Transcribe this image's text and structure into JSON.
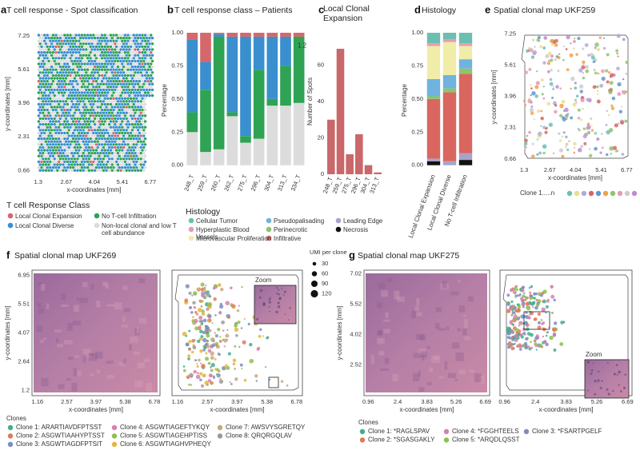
{
  "chart_data": [
    {
      "type": "map",
      "label": "a",
      "title": "T cell response - Spot classification",
      "x_label": "x-coordinates [mm]",
      "y_label": "y-coordinates [mm]",
      "xlim": [
        1.0,
        7.05
      ],
      "ylim": [
        0.4,
        7.45
      ],
      "xticks": [
        1.3,
        2.67,
        4.04,
        5.41,
        6.77
      ],
      "yticks": [
        0.66,
        2.31,
        3.96,
        5.61,
        7.25
      ]
    },
    {
      "type": "stacked_bar",
      "label": "b",
      "title": "T cell response class – Patients",
      "y_label": "Percentage",
      "legend_title": "T cell Response Class",
      "annotation": "1.2",
      "categories": [
        "248_T",
        "259_T",
        "260_T",
        "262_T",
        "275_T",
        "296_T",
        "304_T",
        "313_T",
        "334_T"
      ],
      "ylim": [
        -0.05,
        1.03
      ],
      "yticks": [
        {
          "value": 0,
          "label": "0.00"
        },
        {
          "value": 0.25,
          "label": "0.25"
        },
        {
          "value": 0.5,
          "label": "0.50"
        },
        {
          "value": 0.75,
          "label": "0.75"
        },
        {
          "value": 1,
          "label": "1.00"
        }
      ],
      "series": [
        {
          "name": "Local Clonal Expansion",
          "color": "#d4686b",
          "values": [
            0.05,
            0.22,
            0.01,
            0.03,
            0.03,
            0.03,
            0.03,
            0.03,
            0.03
          ]
        },
        {
          "name": "Local Clonal Diverse",
          "color": "#3a8fcf",
          "values": [
            0.55,
            0.21,
            0.02,
            0.57,
            0.75,
            0.25,
            0.47,
            0.22,
            0.0
          ]
        },
        {
          "name": "No T-cell Infiltration",
          "color": "#2fa354",
          "values": [
            0.15,
            0.47,
            0.85,
            0.03,
            0.05,
            0.52,
            0.05,
            0.3,
            0.5
          ]
        },
        {
          "name": "Non-local clonal and low T cell abundance",
          "color": "#dcdcdc",
          "values": [
            0.25,
            0.1,
            0.12,
            0.37,
            0.17,
            0.2,
            0.45,
            0.45,
            0.47
          ]
        }
      ]
    },
    {
      "type": "bar",
      "label": "c",
      "title": "Local Clonal Expansion",
      "y_label": "Number of Spots",
      "color": "#c9676a",
      "categories": [
        "248_T",
        "259_T",
        "275_T",
        "296_T",
        "304_T",
        "313_T"
      ],
      "values": [
        30,
        69,
        11,
        22,
        5,
        1
      ],
      "ylim": [
        0,
        80
      ],
      "yticks": [
        0,
        20,
        40,
        60
      ]
    },
    {
      "type": "stacked_bar",
      "label": "d",
      "title": "Histology",
      "y_label": "Percentage",
      "legend_title": "Histology",
      "categories": [
        "Local Clonal Expansion",
        "Local Clonal Diverse",
        "No T-cell Infiltration"
      ],
      "ylim": [
        -0.05,
        1.03
      ],
      "yticks": [
        {
          "value": 0,
          "label": "0.00"
        },
        {
          "value": 0.25,
          "label": "0.25"
        },
        {
          "value": 0.5,
          "label": "0.50"
        },
        {
          "value": 0.75,
          "label": "0.75"
        },
        {
          "value": 1,
          "label": "1.00"
        }
      ],
      "series": [
        {
          "name": "Cellular Tumor",
          "color": "#6bbfb0",
          "values": [
            0.08,
            0.05,
            0.08
          ]
        },
        {
          "name": "Hyperplastic Blood Vessels",
          "color": "#e89bb5",
          "values": [
            0.02,
            0.02,
            0.02
          ]
        },
        {
          "name": "Microvascular Proliferation",
          "color": "#f0eda8",
          "values": [
            0.25,
            0.25,
            0.1
          ]
        },
        {
          "name": "Pseudopalisading",
          "color": "#6fb3de",
          "values": [
            0.13,
            0.1,
            0.07
          ]
        },
        {
          "name": "Perinecrotic",
          "color": "#8fc46a",
          "values": [
            0.02,
            0.03,
            0.04
          ]
        },
        {
          "name": "Infiltrative",
          "color": "#d9665f",
          "values": [
            0.45,
            0.52,
            0.6
          ]
        },
        {
          "name": "Leading Edge",
          "color": "#a9a3c9",
          "values": [
            0.02,
            0.03,
            0.05
          ]
        },
        {
          "name": "Necrosis",
          "color": "#111111",
          "values": [
            0.03,
            0.0,
            0.04
          ]
        }
      ]
    },
    {
      "type": "map",
      "label": "e",
      "title": "Spatial clonal map UKF259",
      "x_label": "x-coordinates [mm]",
      "y_label": "y-coordinates [mm]",
      "xlim": [
        1.0,
        7.05
      ],
      "ylim": [
        0.4,
        7.45
      ],
      "xticks": [
        1.3,
        2.67,
        4.04,
        5.41,
        6.77
      ],
      "yticks": [
        0.66,
        2.31,
        3.96,
        5.61,
        7.25
      ],
      "legend_title": "Clone 1.....n",
      "clone_colors": [
        "#6bbfb0",
        "#e6e08a",
        "#b3a9d6",
        "#d9665f",
        "#5f97cf",
        "#f0a04b",
        "#8fc46a",
        "#e89bb5",
        "#cccccc",
        "#c08bc9"
      ]
    },
    {
      "type": "map",
      "label": "f",
      "title": "Spatial clonal map UKF269",
      "x_label": "x-coordinates [mm]",
      "y_label": "y-coordinates [mm]",
      "xlim": [
        0.9,
        7.05
      ],
      "ylim": [
        0.95,
        7.2
      ],
      "xticks": [
        1.16,
        2.57,
        3.97,
        5.38,
        6.78
      ],
      "yticks": [
        1.2,
        2.64,
        4.07,
        5.51,
        6.95
      ],
      "zoom_label": "Zoom",
      "size_legend": {
        "title": "UMI per clone",
        "values": [
          30,
          60,
          90,
          120
        ]
      },
      "clones_title": "Clones",
      "clones": [
        {
          "name": "Clone 1: ARARTIAVDFPTSST",
          "color": "#3fae8e"
        },
        {
          "name": "Clone 2: ASGWTIAAHYPTSST",
          "color": "#e07a5a"
        },
        {
          "name": "Clone 3: ASGWTIAGDFPTSIT",
          "color": "#7c8cc1"
        },
        {
          "name": "Clone 4: ASGWTIAGEFTYKQY",
          "color": "#d77fb4"
        },
        {
          "name": "Clone 5: ASGWTIAGEHPTISS",
          "color": "#8fbf4f"
        },
        {
          "name": "Clone 6: ASGWTIAGHVPHEQY",
          "color": "#e3b63c"
        },
        {
          "name": "Clone 7: AWSVYSGRETQY",
          "color": "#c8a77c"
        },
        {
          "name": "Clone 8: QRQRGQLAV",
          "color": "#9a9a9a"
        }
      ]
    },
    {
      "type": "map",
      "label": "g",
      "title": "Spatial clonal map UKF275",
      "x_label": "x-coordinates [mm]",
      "y_label": "y-coordinates [mm]",
      "xlim": [
        0.75,
        6.9
      ],
      "ylim": [
        1.0,
        7.2
      ],
      "xticks": [
        0.96,
        2.4,
        3.83,
        5.26,
        6.69
      ],
      "yticks": [
        2.52,
        4.02,
        5.52,
        7.02
      ],
      "zoom_label": "Zoom",
      "clones_title": "Clones",
      "clones": [
        {
          "name": "Clone 1: *RAGLSPAV",
          "color": "#3fae8e"
        },
        {
          "name": "Clone 2: *SGASGAKLY",
          "color": "#e07a5a"
        },
        {
          "name": "Clone 3: *FSARTPGELF",
          "color": "#7c8cc1"
        },
        {
          "name": "Clone 4: *FGGHTEELS",
          "color": "#d77fb4"
        },
        {
          "name": "Clone 5: *ARQDLQSST",
          "color": "#8fbf4f"
        }
      ]
    }
  ]
}
